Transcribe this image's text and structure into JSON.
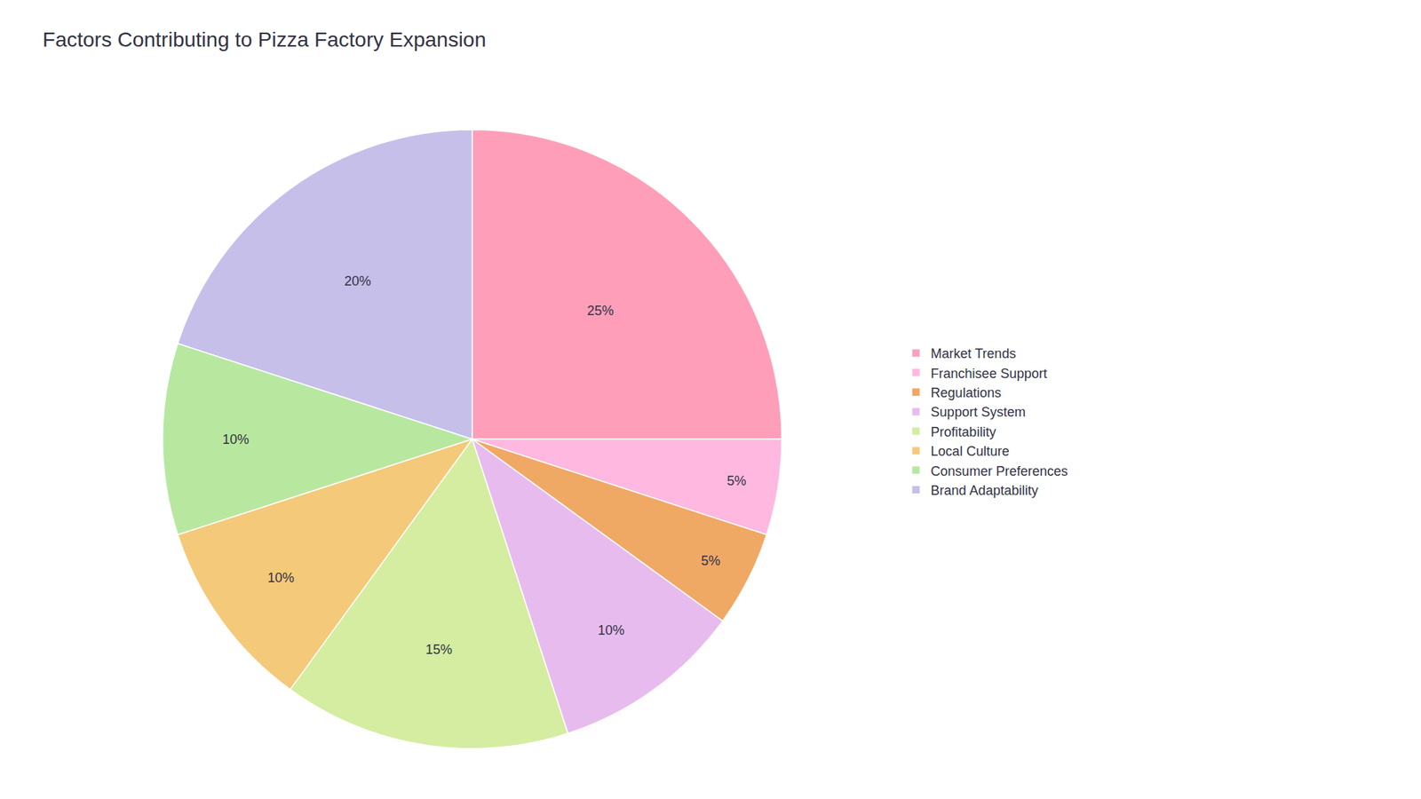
{
  "chart_data": {
    "type": "pie",
    "title": "Factors Contributing to Pizza Factory Expansion",
    "categories": [
      "Market Trends",
      "Franchisee Support",
      "Regulations",
      "Support System",
      "Profitability",
      "Local Culture",
      "Consumer Preferences",
      "Brand Adaptability"
    ],
    "values": [
      25,
      5,
      5,
      10,
      15,
      10,
      10,
      20
    ],
    "value_labels": [
      "25%",
      "5%",
      "5%",
      "10%",
      "15%",
      "10%",
      "10%",
      "20%"
    ],
    "colors": [
      "#FF9EB8",
      "#FFB8E0",
      "#F0A865",
      "#E8BBEF",
      "#D4EDA0",
      "#F5C97A",
      "#B8E8A0",
      "#C5BFEA"
    ],
    "legend": "right",
    "data_labels": true
  }
}
